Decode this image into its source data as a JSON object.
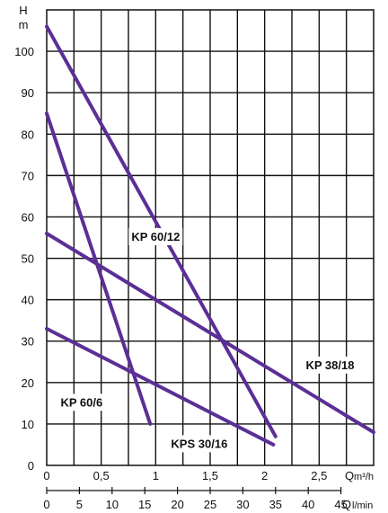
{
  "chart_data": {
    "type": "line",
    "xlabel": "Q",
    "xlabel_unit": "m³/h",
    "x2label": "Q",
    "x2label_unit": "l/min",
    "ylabel": "H",
    "ylabel_unit": "m",
    "xlim": [
      0,
      3.0
    ],
    "ylim": [
      0,
      110
    ],
    "x_ticks": [
      0,
      0.5,
      1,
      1.5,
      2,
      2.5
    ],
    "x_tick_labels": [
      "0",
      "0,5",
      "1",
      "1,5",
      "2",
      "2,5"
    ],
    "x2_ticks": [
      0,
      5,
      10,
      15,
      20,
      25,
      30,
      35,
      40,
      45
    ],
    "x2_tick_labels": [
      "0",
      "5",
      "10",
      "15",
      "20",
      "25",
      "30",
      "35",
      "40",
      "45"
    ],
    "y_ticks": [
      0,
      10,
      20,
      30,
      40,
      50,
      60,
      70,
      80,
      90,
      100
    ],
    "y_tick_labels": [
      "0",
      "10",
      "20",
      "30",
      "40",
      "50",
      "60",
      "70",
      "80",
      "90",
      "100"
    ],
    "grid": true,
    "line_color": "#5b2f96",
    "series": [
      {
        "name": "KP 60/12",
        "points": [
          [
            0.0,
            106
          ],
          [
            2.1,
            7
          ]
        ],
        "label_at": [
          1.0,
          55
        ]
      },
      {
        "name": "KP 38/18",
        "points": [
          [
            0.0,
            56
          ],
          [
            3.0,
            8
          ]
        ],
        "label_at": [
          2.6,
          24
        ]
      },
      {
        "name": "KP 60/6",
        "points": [
          [
            0.0,
            85
          ],
          [
            0.95,
            10
          ]
        ],
        "label_at": [
          0.32,
          15
        ]
      },
      {
        "name": "KPS 30/16",
        "points": [
          [
            0.0,
            33
          ],
          [
            2.08,
            5
          ]
        ],
        "label_at": [
          1.4,
          5
        ]
      }
    ]
  }
}
